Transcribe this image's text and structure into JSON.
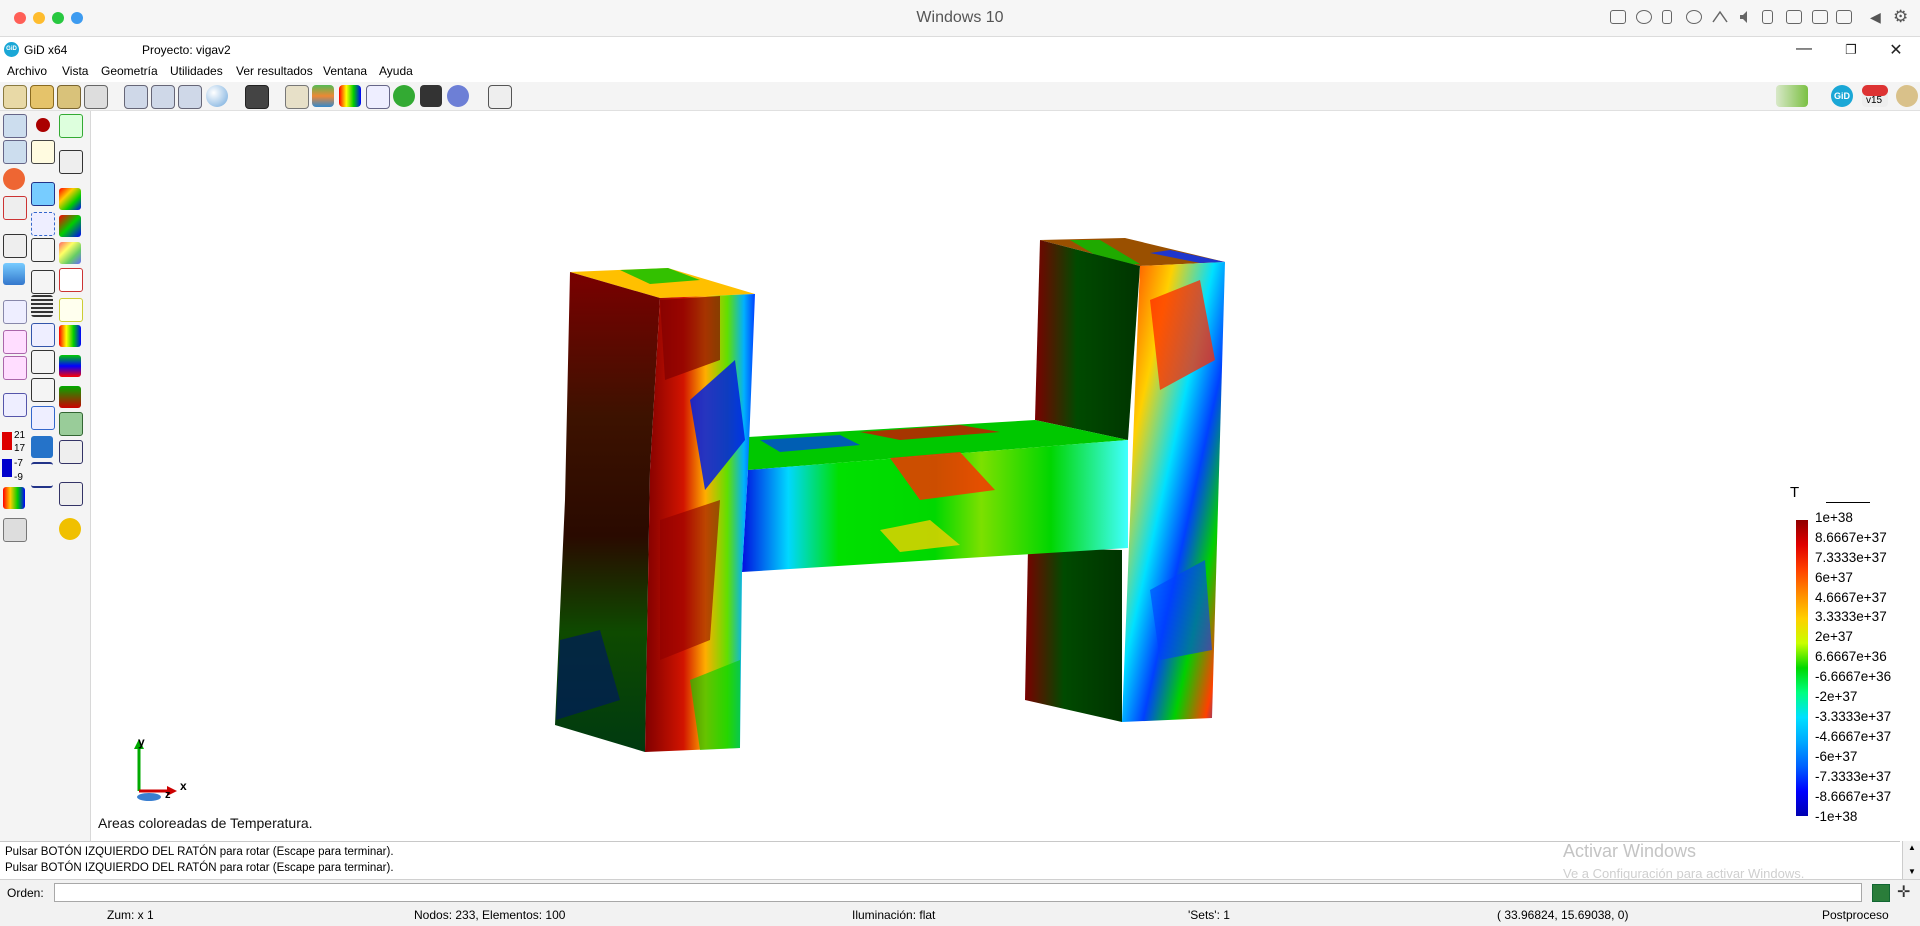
{
  "host": {
    "title": "Windows 10",
    "traffic_lights": [
      "#ff5f57",
      "#febc2e",
      "#28c840",
      "#3d9bf0"
    ]
  },
  "app": {
    "name": "GiD x64",
    "project": "Proyecto: vigav2",
    "logo_text": "GiD"
  },
  "menu": [
    "Archivo",
    "Vista",
    "Geometría",
    "Utilidades",
    "Ver resultados",
    "Ventana",
    "Ayuda"
  ],
  "toolbar": {
    "version_label": "v15",
    "gid_label": "GiD"
  },
  "left_legend": {
    "values": [
      "21",
      "17",
      "-7",
      "-9"
    ]
  },
  "viewport": {
    "caption": "Areas coloreadas de Temperatura.",
    "axes": {
      "x": "x",
      "y": "y",
      "z": "z"
    }
  },
  "legend": {
    "title": "T",
    "values": [
      "1e+38",
      "8.6667e+37",
      "7.3333e+37",
      "6e+37",
      "4.6667e+37",
      "3.3333e+37",
      "2e+37",
      "6.6667e+36",
      "-6.6667e+36",
      "-2e+37",
      "-3.3333e+37",
      "-4.6667e+37",
      "-6e+37",
      "-7.3333e+37",
      "-8.6667e+37",
      "-1e+38"
    ]
  },
  "messages": [
    "Pulsar BOTÓN IZQUIERDO DEL RATÓN para rotar (Escape para terminar).",
    "Pulsar BOTÓN IZQUIERDO DEL RATÓN para rotar (Escape para terminar)."
  ],
  "command": {
    "label": "Orden:",
    "value": ""
  },
  "status": {
    "zoom": "Zum: x 1",
    "nodes": "Nodos: 233, Elementos: 100",
    "lighting": "Iluminación: flat",
    "sets": "'Sets': 1",
    "coords": "( 33.96824,  15.69038,  0)",
    "mode": "Postproceso"
  },
  "watermark": {
    "title": "Activar Windows",
    "subtitle": "Ve a Configuración para activar Windows."
  }
}
